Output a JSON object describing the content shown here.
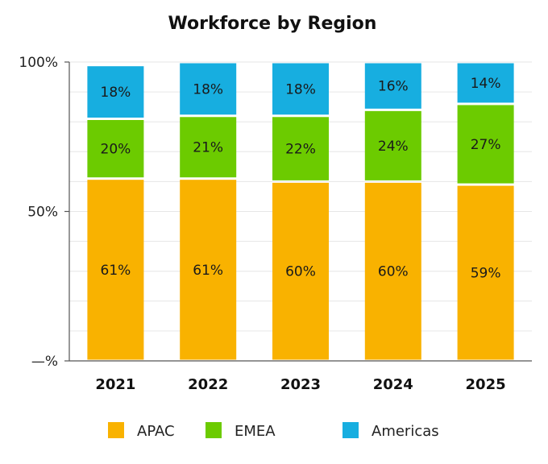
{
  "chart_data": {
    "type": "bar",
    "stacked": true,
    "title": "Workforce by Region",
    "xlabel": "",
    "ylabel": "",
    "categories": [
      "2021",
      "2022",
      "2023",
      "2024",
      "2025"
    ],
    "ylim": [
      0,
      100
    ],
    "yticks": [
      {
        "value": 0,
        "label": "—%"
      },
      {
        "value": 50,
        "label": "50%"
      },
      {
        "value": 100,
        "label": "100%"
      }
    ],
    "grid": true,
    "legend_position": "bottom",
    "series": [
      {
        "name": "APAC",
        "color": "#F9B200",
        "values": [
          61,
          61,
          60,
          60,
          59
        ],
        "labels": [
          "61%",
          "61%",
          "60%",
          "60%",
          "59%"
        ]
      },
      {
        "name": "EMEA",
        "color": "#6CCB00",
        "values": [
          20,
          21,
          22,
          24,
          27
        ],
        "labels": [
          "20%",
          "21%",
          "22%",
          "24%",
          "27%"
        ]
      },
      {
        "name": "Americas",
        "color": "#17AEE0",
        "values": [
          18,
          18,
          18,
          16,
          14
        ],
        "labels": [
          "18%",
          "18%",
          "18%",
          "16%",
          "14%"
        ]
      }
    ]
  }
}
